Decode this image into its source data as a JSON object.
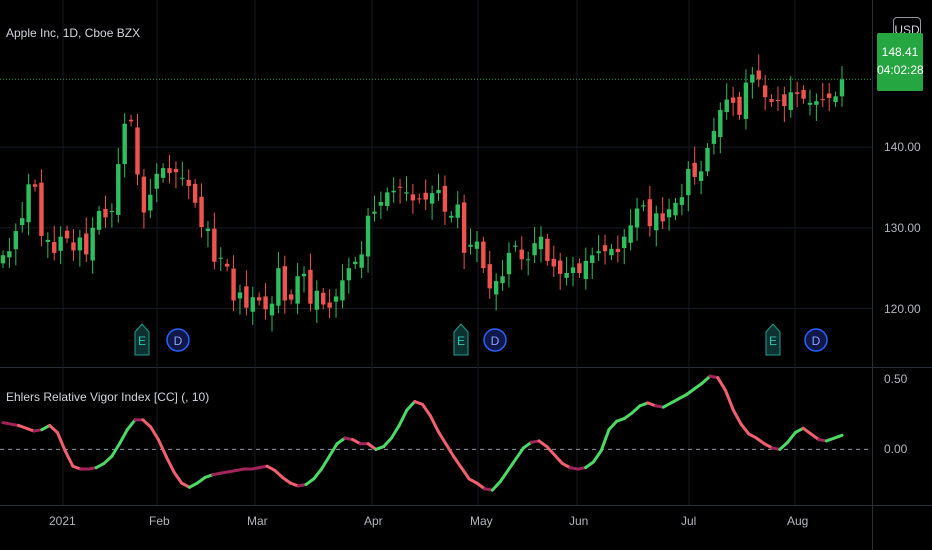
{
  "header": {
    "title": "Apple Inc, 1D, Cboe BZX"
  },
  "currency_button": "USD",
  "last_price": {
    "value": "148.41",
    "countdown": "04:02:28"
  },
  "indicator": {
    "title": "Ehlers Relative Vigor Index [CC] (, 10)"
  },
  "colors": {
    "up": "#26a69a",
    "up_bright": "#2ebd5f",
    "down": "#ef5350",
    "rvi_up": "#4cd964",
    "rvi_down": "#f25f6f",
    "rvi_mid": "#a3245d"
  },
  "chart_data": [
    {
      "type": "candlestick",
      "title": "Apple Inc, 1D, Cboe BZX",
      "y_ticks": [
        "140.00",
        "130.00",
        "120.00"
      ],
      "ylim": [
        113,
        157
      ],
      "x_ticks": [
        "2021",
        "Feb",
        "Mar",
        "Apr",
        "May",
        "Jun",
        "Jul",
        "Aug"
      ],
      "last_price": 148.41,
      "events": [
        {
          "label": "E",
          "month": "Jan"
        },
        {
          "label": "D",
          "month": "Feb"
        },
        {
          "label": "E",
          "month": "Apr"
        },
        {
          "label": "D",
          "month": "May"
        },
        {
          "label": "E",
          "month": "Jul"
        },
        {
          "label": "D",
          "month": "Aug"
        }
      ],
      "closes": [
        126.6,
        127.1,
        129.6,
        131.2,
        135.4,
        135.1,
        129.0,
        128.5,
        126.9,
        128.9,
        128.7,
        127.2,
        128.8,
        126.7,
        130.0,
        132.1,
        131.3,
        132.1,
        137.9,
        142.9,
        143.2,
        136.6,
        131.9,
        134.1,
        136.7,
        137.4,
        136.8,
        136.9,
        136.2,
        135.2,
        133.1,
        130.1,
        129.9,
        125.8,
        126.3,
        125.2,
        121.0,
        122.0,
        120.1,
        121.4,
        121.0,
        119.9,
        120.6,
        125.0,
        121.0,
        121.1,
        124.0,
        124.3,
        120.6,
        122.2,
        120.5,
        120.1,
        121.5,
        123.5,
        125.0,
        125.8,
        126.7,
        131.5,
        132.0,
        133.2,
        134.4,
        134.6,
        135.0,
        134.4,
        133.4,
        133.6,
        133.5,
        134.3,
        134.7,
        132.0,
        131.5,
        132.9,
        126.9,
        127.9,
        128.3,
        125.0,
        122.5,
        123.4,
        124.0,
        126.9,
        127.8,
        126.1,
        126.1,
        128.1,
        128.9,
        125.9,
        125.2,
        124.3,
        124.4,
        125.1,
        124.4,
        125.9,
        126.6,
        127.1,
        127.1,
        127.4,
        127.0,
        128.9,
        130.3,
        132.4,
        132.8,
        130.2,
        131.8,
        130.8,
        132.3,
        133.1,
        133.8,
        137.3,
        136.3,
        137.0,
        139.9,
        142.0,
        144.6,
        145.9,
        145.5,
        144.0,
        148.0,
        149.0,
        148.4,
        146.2,
        145.6,
        145.8,
        145.1,
        146.8,
        146.6,
        146.0,
        145.5,
        145.7,
        145.9,
        146.1,
        146.3,
        148.4
      ]
    },
    {
      "type": "line",
      "title": "Ehlers Relative Vigor Index [CC] (, 10)",
      "y_ticks": [
        "0.50",
        "0.00"
      ],
      "ylim": [
        -0.36,
        0.55
      ],
      "zero_line": 0,
      "values": [
        0.19,
        0.18,
        0.17,
        0.15,
        0.13,
        0.14,
        0.17,
        0.12,
        -0.01,
        -0.12,
        -0.14,
        -0.14,
        -0.13,
        -0.1,
        -0.05,
        0.04,
        0.14,
        0.21,
        0.21,
        0.16,
        0.07,
        -0.05,
        -0.16,
        -0.24,
        -0.27,
        -0.24,
        -0.2,
        -0.18,
        -0.17,
        -0.16,
        -0.15,
        -0.14,
        -0.14,
        -0.13,
        -0.12,
        -0.15,
        -0.2,
        -0.24,
        -0.26,
        -0.25,
        -0.21,
        -0.14,
        -0.05,
        0.04,
        0.08,
        0.07,
        0.04,
        0.04,
        0.0,
        0.02,
        0.08,
        0.17,
        0.28,
        0.34,
        0.32,
        0.24,
        0.13,
        0.04,
        -0.05,
        -0.13,
        -0.21,
        -0.24,
        -0.28,
        -0.29,
        -0.23,
        -0.15,
        -0.07,
        0.01,
        0.05,
        0.06,
        0.02,
        -0.04,
        -0.1,
        -0.13,
        -0.14,
        -0.13,
        -0.09,
        -0.01,
        0.14,
        0.2,
        0.22,
        0.26,
        0.31,
        0.33,
        0.31,
        0.3,
        0.33,
        0.36,
        0.39,
        0.43,
        0.47,
        0.52,
        0.51,
        0.42,
        0.28,
        0.18,
        0.11,
        0.08,
        0.04,
        0.01,
        0.0,
        0.05,
        0.12,
        0.15,
        0.11,
        0.07,
        0.06,
        0.08,
        0.1
      ]
    }
  ]
}
